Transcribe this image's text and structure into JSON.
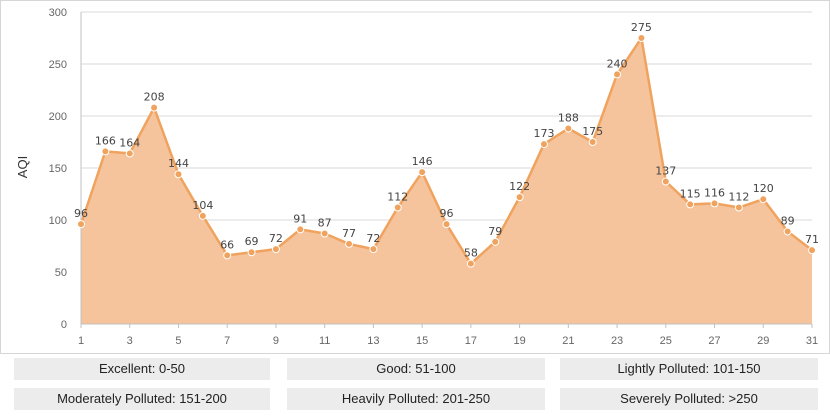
{
  "chart_data": {
    "type": "area",
    "title": "",
    "xlabel": "",
    "ylabel": "AQI",
    "x": [
      1,
      2,
      3,
      4,
      5,
      6,
      7,
      8,
      9,
      10,
      11,
      12,
      13,
      14,
      15,
      16,
      17,
      18,
      19,
      20,
      21,
      22,
      23,
      24,
      25,
      26,
      27,
      28,
      29,
      30,
      31
    ],
    "x_tick_labels": [
      "1",
      "3",
      "5",
      "7",
      "9",
      "11",
      "13",
      "15",
      "17",
      "19",
      "21",
      "23",
      "25",
      "27",
      "29",
      "31"
    ],
    "series": [
      {
        "values": [
          96,
          166,
          164,
          208,
          144,
          104,
          66,
          69,
          72,
          91,
          87,
          77,
          72,
          112,
          146,
          96,
          58,
          79,
          122,
          173,
          188,
          175,
          240,
          275,
          137,
          115,
          116,
          112,
          120,
          89,
          71
        ],
        "color": "#f0a35e",
        "fill": "#f5c49c"
      }
    ],
    "ylim": [
      0,
      300
    ],
    "y_ticks": [
      0,
      50,
      100,
      150,
      200,
      250,
      300
    ],
    "grid": true
  },
  "legend": {
    "items": [
      {
        "label": "Excellent: 0-50"
      },
      {
        "label": "Good: 51-100"
      },
      {
        "label": "Lightly Polluted: 101-150"
      },
      {
        "label": "Moderately Polluted: 151-200"
      },
      {
        "label": "Heavily Polluted: 201-250"
      },
      {
        "label": "Severely Polluted: >250"
      }
    ]
  }
}
